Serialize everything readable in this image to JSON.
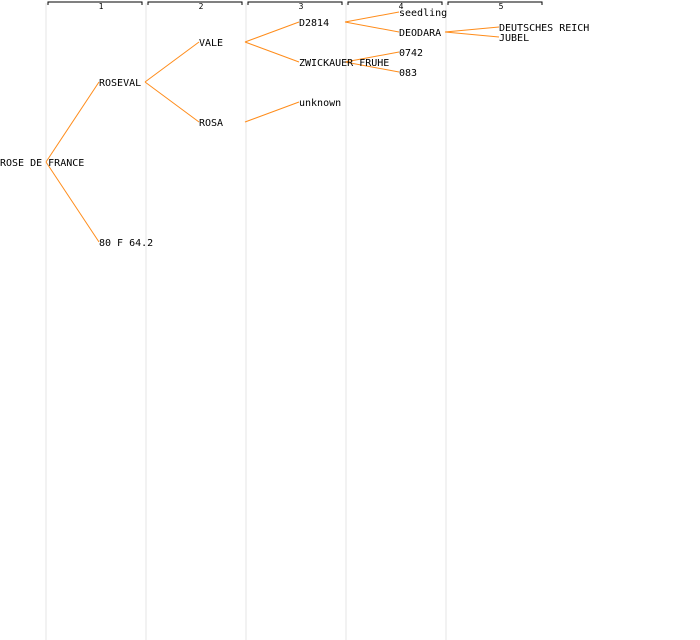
{
  "generations": [
    "1",
    "2",
    "3",
    "4",
    "5"
  ],
  "colors": {
    "edge": "#ff8c1a",
    "column_line": "#e4e4e4",
    "text": "#000000"
  },
  "tree": {
    "name": "ROSE DE FRANCE",
    "children": [
      {
        "name": "ROSEVAL",
        "children": [
          {
            "name": "VALE",
            "children": [
              {
                "name": "D2814",
                "children": [
                  {
                    "name": "seedling"
                  },
                  {
                    "name": "DEODARA",
                    "children": [
                      {
                        "name": "DEUTSCHES REICH"
                      },
                      {
                        "name": "JUBEL"
                      }
                    ]
                  }
                ]
              },
              {
                "name": "ZWICKAUER FRUHE",
                "children": [
                  {
                    "name": "0742"
                  },
                  {
                    "name": "083"
                  }
                ]
              }
            ]
          },
          {
            "name": "ROSA",
            "children": [
              {
                "name": "unknown"
              }
            ]
          }
        ]
      },
      {
        "name": "80 F 64.2"
      }
    ]
  }
}
